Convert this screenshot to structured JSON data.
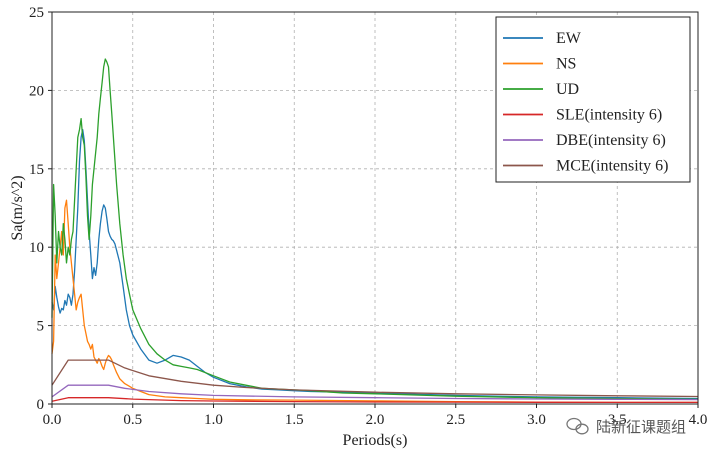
{
  "chart_data": {
    "type": "line",
    "xlabel": "Periods(s)",
    "ylabel": "Sa(m/s^2)",
    "xlim": [
      0.0,
      4.0
    ],
    "ylim": [
      0,
      25
    ],
    "x_ticks": [
      "0.0",
      "0.5",
      "1.0",
      "1.5",
      "2.0",
      "2.5",
      "3.0",
      "3.5",
      "4.0"
    ],
    "y_ticks": [
      "0",
      "5",
      "10",
      "15",
      "20",
      "25"
    ],
    "grid": true,
    "legend_position": "top-right",
    "series": [
      {
        "name": "EW",
        "color": "#1f77b4",
        "x": [
          0.0,
          0.01,
          0.02,
          0.03,
          0.04,
          0.05,
          0.06,
          0.07,
          0.08,
          0.09,
          0.1,
          0.11,
          0.12,
          0.13,
          0.14,
          0.15,
          0.16,
          0.17,
          0.18,
          0.19,
          0.2,
          0.21,
          0.22,
          0.23,
          0.24,
          0.25,
          0.26,
          0.27,
          0.28,
          0.29,
          0.3,
          0.31,
          0.32,
          0.33,
          0.34,
          0.35,
          0.36,
          0.37,
          0.38,
          0.39,
          0.4,
          0.42,
          0.44,
          0.46,
          0.48,
          0.5,
          0.55,
          0.6,
          0.65,
          0.7,
          0.75,
          0.8,
          0.85,
          0.9,
          0.95,
          1.0,
          1.1,
          1.2,
          1.3,
          1.4,
          1.5,
          1.6,
          1.8,
          2.0,
          2.5,
          3.0,
          3.5,
          4.0
        ],
        "y": [
          6.5,
          6.0,
          7.5,
          6.8,
          6.2,
          5.8,
          6.1,
          6.0,
          6.6,
          6.3,
          7.0,
          6.8,
          6.3,
          7.0,
          8.5,
          10.5,
          12.5,
          15.5,
          17.0,
          17.5,
          16.8,
          15.0,
          13.0,
          11.0,
          9.5,
          8.0,
          8.7,
          8.2,
          9.0,
          10.5,
          11.5,
          12.3,
          12.7,
          12.5,
          11.8,
          11.0,
          10.7,
          10.5,
          10.4,
          10.2,
          9.8,
          9.0,
          7.5,
          6.0,
          5.0,
          4.4,
          3.5,
          2.8,
          2.6,
          2.8,
          3.1,
          3.0,
          2.8,
          2.4,
          2.0,
          1.7,
          1.3,
          1.1,
          0.95,
          0.9,
          0.85,
          0.8,
          0.75,
          0.7,
          0.55,
          0.45,
          0.4,
          0.35
        ]
      },
      {
        "name": "NS",
        "color": "#ff7f0e",
        "x": [
          0.0,
          0.01,
          0.02,
          0.03,
          0.04,
          0.05,
          0.06,
          0.07,
          0.08,
          0.09,
          0.1,
          0.11,
          0.12,
          0.13,
          0.14,
          0.15,
          0.16,
          0.17,
          0.18,
          0.19,
          0.2,
          0.21,
          0.22,
          0.23,
          0.24,
          0.25,
          0.26,
          0.27,
          0.28,
          0.29,
          0.3,
          0.31,
          0.32,
          0.33,
          0.34,
          0.35,
          0.36,
          0.37,
          0.38,
          0.4,
          0.42,
          0.45,
          0.5,
          0.55,
          0.6,
          0.7,
          0.8,
          0.9,
          1.0,
          1.2,
          1.5,
          2.0,
          2.5,
          3.0,
          3.5,
          4.0
        ],
        "y": [
          3.2,
          4.0,
          9.5,
          8.0,
          9.0,
          10.0,
          11.0,
          9.5,
          12.5,
          13.0,
          11.5,
          10.0,
          9.0,
          8.0,
          7.0,
          6.0,
          6.5,
          6.8,
          7.0,
          6.0,
          5.0,
          4.5,
          4.0,
          3.8,
          3.5,
          3.8,
          3.0,
          2.8,
          2.6,
          2.9,
          2.7,
          2.4,
          2.2,
          2.6,
          2.9,
          3.1,
          3.0,
          2.8,
          2.5,
          2.0,
          1.6,
          1.3,
          1.0,
          0.8,
          0.6,
          0.45,
          0.4,
          0.35,
          0.3,
          0.27,
          0.25,
          0.2,
          0.15,
          0.12,
          0.1,
          0.1
        ]
      },
      {
        "name": "UD",
        "color": "#2ca02c",
        "x": [
          0.0,
          0.01,
          0.02,
          0.03,
          0.04,
          0.05,
          0.06,
          0.07,
          0.08,
          0.09,
          0.1,
          0.11,
          0.12,
          0.13,
          0.14,
          0.15,
          0.16,
          0.17,
          0.18,
          0.19,
          0.2,
          0.21,
          0.22,
          0.23,
          0.24,
          0.25,
          0.26,
          0.27,
          0.28,
          0.29,
          0.3,
          0.31,
          0.32,
          0.33,
          0.34,
          0.35,
          0.36,
          0.37,
          0.38,
          0.39,
          0.4,
          0.42,
          0.44,
          0.46,
          0.48,
          0.5,
          0.55,
          0.6,
          0.65,
          0.7,
          0.75,
          0.8,
          0.85,
          0.9,
          1.0,
          1.1,
          1.2,
          1.3,
          1.4,
          1.5,
          1.6,
          1.8,
          2.0,
          2.5,
          3.0,
          3.5,
          4.0
        ],
        "y": [
          5.5,
          14.0,
          12.0,
          9.0,
          11.0,
          10.0,
          9.5,
          11.5,
          10.5,
          9.0,
          10.0,
          9.5,
          10.5,
          11.0,
          13.0,
          15.0,
          17.0,
          17.5,
          18.2,
          17.0,
          16.5,
          14.5,
          12.0,
          10.5,
          12.0,
          14.0,
          15.0,
          16.0,
          17.0,
          18.5,
          19.5,
          20.5,
          21.5,
          22.0,
          21.8,
          21.5,
          20.0,
          18.5,
          17.0,
          15.5,
          14.0,
          11.5,
          9.5,
          8.0,
          7.0,
          6.0,
          4.8,
          3.8,
          3.2,
          2.8,
          2.5,
          2.4,
          2.3,
          2.2,
          1.8,
          1.4,
          1.2,
          1.0,
          0.95,
          0.9,
          0.85,
          0.7,
          0.65,
          0.5,
          0.4,
          0.35,
          0.3
        ]
      },
      {
        "name": "SLE(intensity 6)",
        "color": "#d62728",
        "x": [
          0.0,
          0.1,
          0.35,
          0.5,
          0.8,
          1.0,
          1.5,
          2.0,
          2.5,
          3.0,
          3.5,
          4.0
        ],
        "y": [
          0.18,
          0.4,
          0.4,
          0.31,
          0.22,
          0.19,
          0.15,
          0.13,
          0.12,
          0.11,
          0.1,
          0.1
        ]
      },
      {
        "name": "DBE(intensity 6)",
        "color": "#9467bd",
        "x": [
          0.0,
          0.1,
          0.35,
          0.45,
          0.6,
          0.8,
          1.0,
          1.5,
          2.0,
          2.5,
          3.0,
          3.5,
          4.0
        ],
        "y": [
          0.45,
          1.2,
          1.2,
          1.0,
          0.8,
          0.65,
          0.55,
          0.45,
          0.4,
          0.35,
          0.32,
          0.3,
          0.28
        ]
      },
      {
        "name": "MCE(intensity 6)",
        "color": "#8c564b",
        "x": [
          0.0,
          0.1,
          0.35,
          0.45,
          0.6,
          0.8,
          1.0,
          1.2,
          1.5,
          2.0,
          2.5,
          3.0,
          3.5,
          4.0
        ],
        "y": [
          1.2,
          2.8,
          2.8,
          2.3,
          1.8,
          1.45,
          1.2,
          1.05,
          0.9,
          0.75,
          0.65,
          0.58,
          0.52,
          0.48
        ]
      }
    ]
  },
  "watermark": {
    "text": "陆新征课题组",
    "icon": "wechat-icon"
  }
}
